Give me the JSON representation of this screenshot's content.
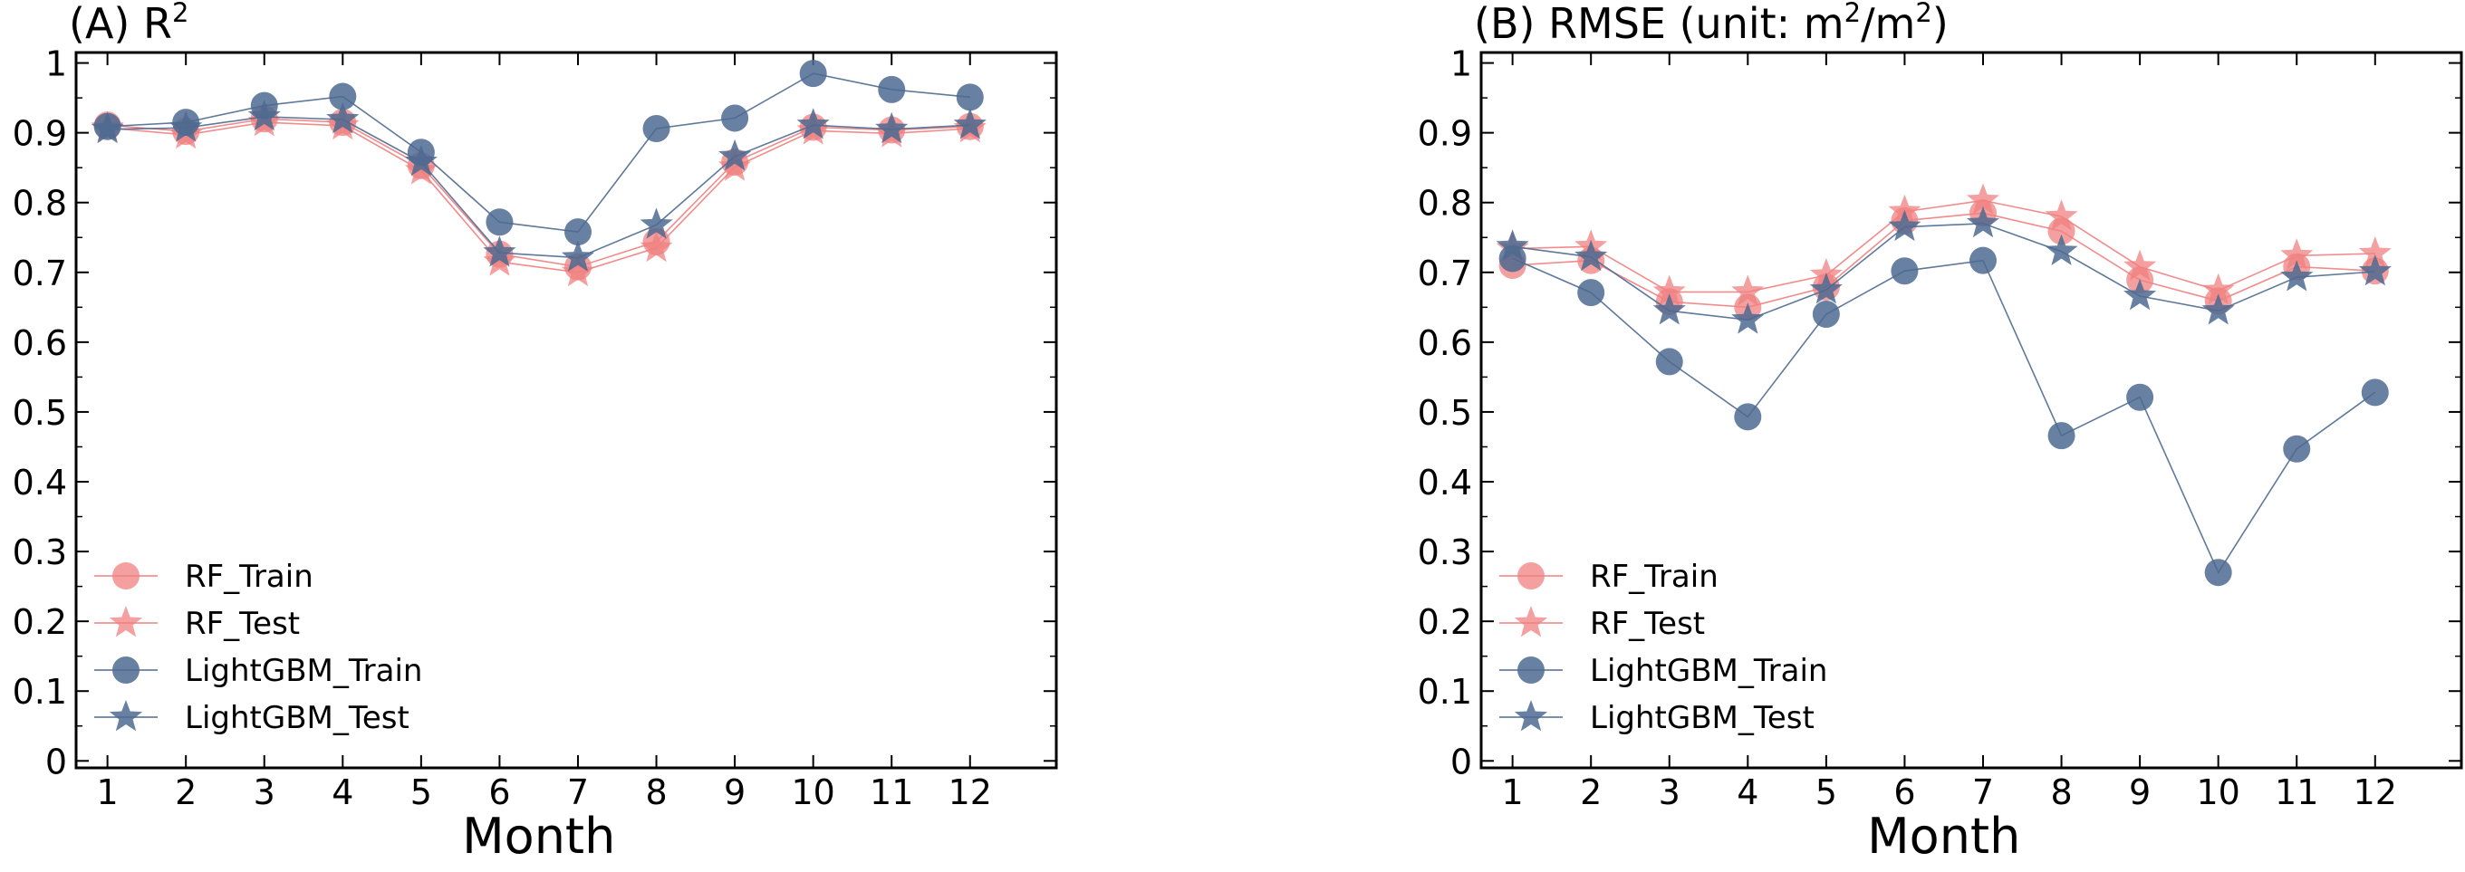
{
  "figure": {
    "xlabel": "Month",
    "colors": {
      "rf": "#f08080",
      "lgbm": "#4e6a91"
    }
  },
  "chart_data": [
    {
      "type": "line",
      "title_prefix": "(A) R",
      "title_sup": "2",
      "xlabel": "Month",
      "ylabel": "",
      "x": [
        1,
        2,
        3,
        4,
        5,
        6,
        7,
        8,
        9,
        10,
        11,
        12
      ],
      "x_ticks": [
        "1",
        "2",
        "3",
        "4",
        "5",
        "6",
        "7",
        "8",
        "9",
        "10",
        "11",
        "12"
      ],
      "xlim": [
        0.6,
        13.1
      ],
      "ylim": [
        -0.01,
        1.015
      ],
      "y_ticks": [
        "0",
        "0.1",
        "0.2",
        "0.3",
        "0.4",
        "0.5",
        "0.6",
        "0.7",
        "0.8",
        "0.9",
        "1"
      ],
      "legend_position": "lower-left",
      "series": [
        {
          "name": "RF_Train",
          "marker": "circle",
          "color": "#f08080",
          "values": [
            0.911,
            0.902,
            0.92,
            0.915,
            0.853,
            0.726,
            0.708,
            0.744,
            0.858,
            0.908,
            0.904,
            0.909
          ]
        },
        {
          "name": "RF_Test",
          "marker": "star",
          "color": "#f08080",
          "values": [
            0.907,
            0.897,
            0.915,
            0.91,
            0.846,
            0.715,
            0.7,
            0.735,
            0.851,
            0.903,
            0.899,
            0.906
          ]
        },
        {
          "name": "LightGBM_Train",
          "marker": "circle",
          "color": "#4e6a91",
          "values": [
            0.909,
            0.915,
            0.939,
            0.952,
            0.872,
            0.772,
            0.758,
            0.906,
            0.921,
            0.985,
            0.962,
            0.951
          ]
        },
        {
          "name": "LightGBM_Test",
          "marker": "star",
          "color": "#4e6a91",
          "values": [
            0.905,
            0.907,
            0.923,
            0.919,
            0.858,
            0.728,
            0.721,
            0.768,
            0.866,
            0.911,
            0.905,
            0.911
          ]
        }
      ]
    },
    {
      "type": "line",
      "title_prefix": "(B) RMSE (unit: m",
      "title_sup": "2",
      "title_mid": "/m",
      "title_sup2": "2",
      "title_suffix": ")",
      "xlabel": "Month",
      "ylabel": "",
      "x": [
        1,
        2,
        3,
        4,
        5,
        6,
        7,
        8,
        9,
        10,
        11,
        12
      ],
      "x_ticks": [
        "1",
        "2",
        "3",
        "4",
        "5",
        "6",
        "7",
        "8",
        "9",
        "10",
        "11",
        "12"
      ],
      "xlim": [
        0.6,
        13.1
      ],
      "ylim": [
        -0.01,
        1.015
      ],
      "y_ticks": [
        "0",
        "0.1",
        "0.2",
        "0.3",
        "0.4",
        "0.5",
        "0.6",
        "0.7",
        "0.8",
        "0.9",
        "1"
      ],
      "legend_position": "lower-left",
      "series": [
        {
          "name": "RF_Train",
          "marker": "circle",
          "color": "#f08080",
          "values": [
            0.71,
            0.717,
            0.658,
            0.65,
            0.679,
            0.774,
            0.785,
            0.759,
            0.689,
            0.659,
            0.708,
            0.702
          ]
        },
        {
          "name": "RF_Test",
          "marker": "star",
          "color": "#f08080",
          "values": [
            0.734,
            0.737,
            0.672,
            0.672,
            0.696,
            0.787,
            0.803,
            0.78,
            0.708,
            0.674,
            0.724,
            0.727
          ]
        },
        {
          "name": "LightGBM_Train",
          "marker": "circle",
          "color": "#4e6a91",
          "values": [
            0.72,
            0.671,
            0.572,
            0.493,
            0.64,
            0.702,
            0.717,
            0.466,
            0.521,
            0.27,
            0.447,
            0.528
          ]
        },
        {
          "name": "LightGBM_Test",
          "marker": "star",
          "color": "#4e6a91",
          "values": [
            0.737,
            0.722,
            0.645,
            0.632,
            0.675,
            0.765,
            0.77,
            0.73,
            0.666,
            0.645,
            0.693,
            0.701
          ]
        }
      ]
    }
  ]
}
